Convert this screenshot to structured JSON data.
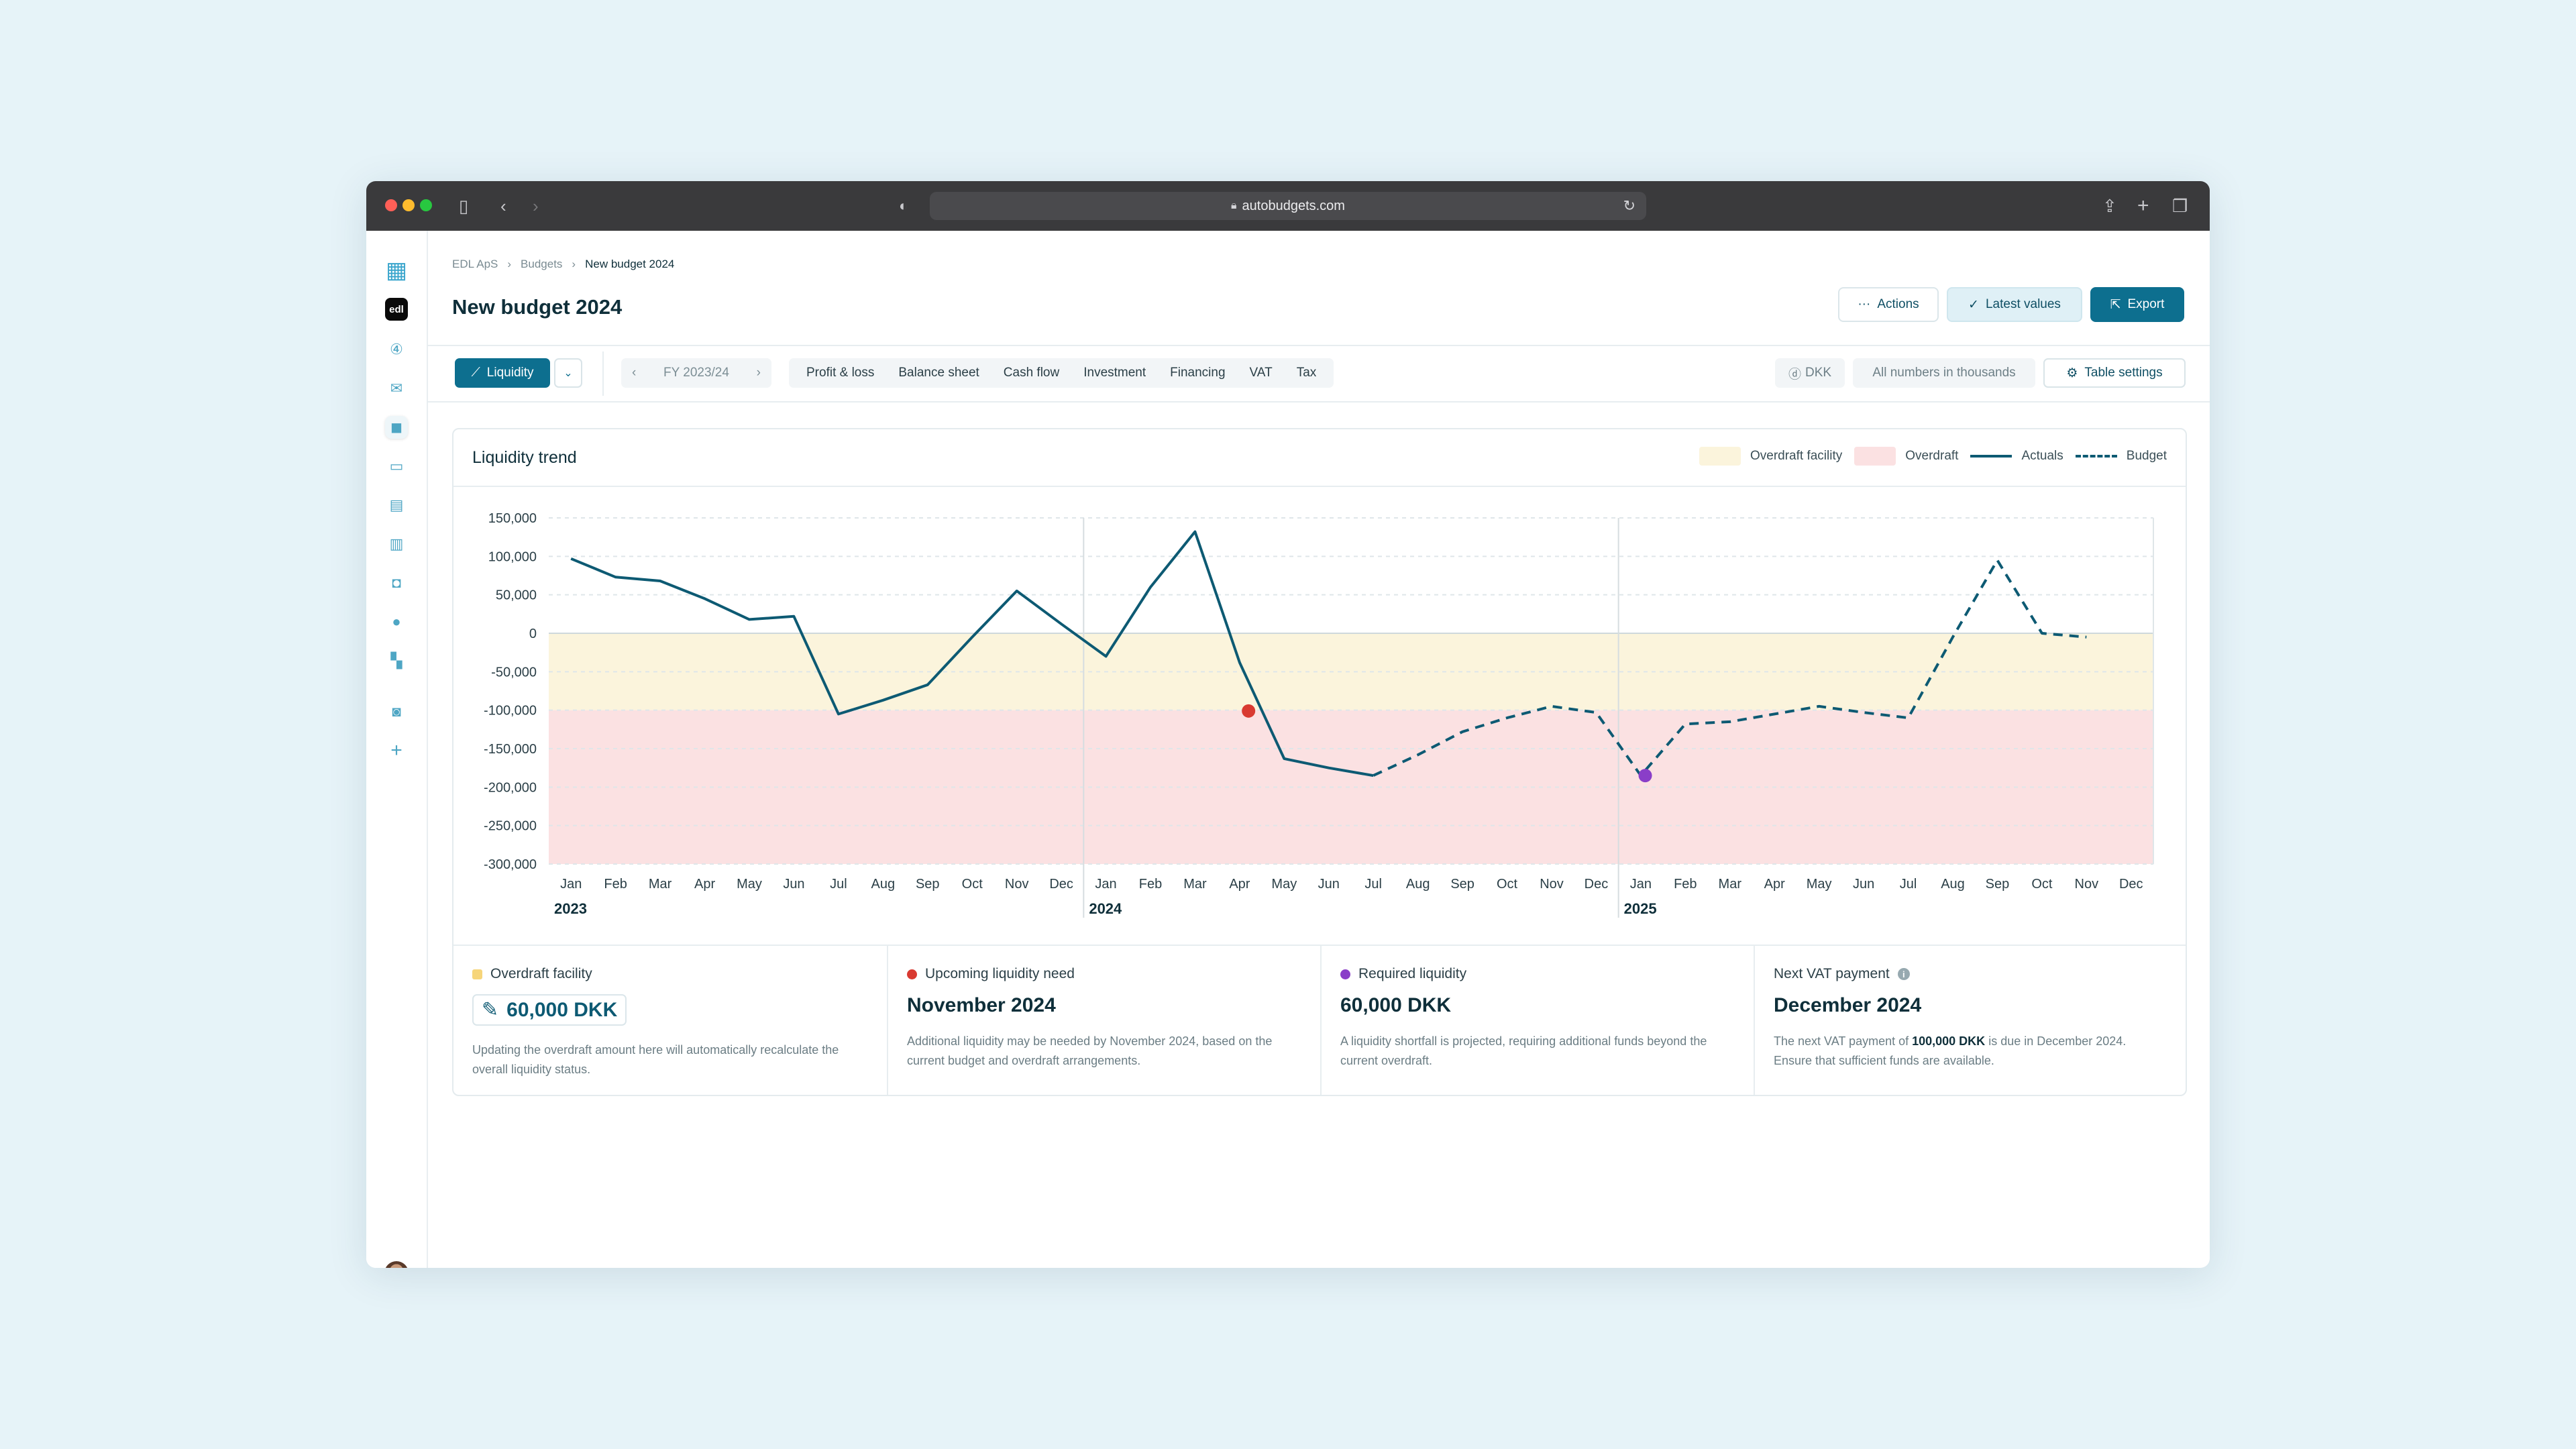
{
  "browser": {
    "url": "autobudgets.com"
  },
  "sidebar": {
    "brand_icon": "grid-logo-icon",
    "workspace_badge": "edl",
    "items": [
      "number-circle-icon",
      "mail-icon",
      "wallet-icon",
      "card-icon",
      "document-icon",
      "chart-icon",
      "database-icon",
      "people-icon",
      "apps-icon",
      "briefcase-icon",
      "plus-icon"
    ]
  },
  "breadcrumb": [
    "EDL ApS",
    "Budgets",
    "New budget 2024"
  ],
  "page_title": "New budget 2024",
  "header_buttons": {
    "actions": "Actions",
    "latest": "Latest values",
    "export": "Export"
  },
  "toolbar": {
    "view": "Liquidity",
    "fiscal_year": "FY 2023/24",
    "tabs": [
      "Profit & loss",
      "Balance sheet",
      "Cash flow",
      "Investment",
      "Financing",
      "VAT",
      "Tax"
    ],
    "currency": "DKK",
    "numbers_note": "All numbers in thousands",
    "table_settings": "Table settings"
  },
  "chart_card": {
    "title": "Liquidity trend",
    "legend": {
      "overdraft_facility": "Overdraft facility",
      "overdraft": "Overdraft",
      "actuals": "Actuals",
      "budget": "Budget"
    }
  },
  "chart_data": {
    "type": "line",
    "ylim": [
      -300000,
      150000
    ],
    "y_ticks": [
      "150,000",
      "100,000",
      "50,000",
      "0",
      "-50,000",
      "-100,000",
      "-150,000",
      "-200,000",
      "-250,000",
      "-300,000"
    ],
    "y_tick_values": [
      150000,
      100000,
      50000,
      0,
      -50000,
      -100000,
      -150000,
      -200000,
      -250000,
      -300000
    ],
    "months": [
      "Jan",
      "Feb",
      "Mar",
      "Apr",
      "May",
      "Jun",
      "Jul",
      "Aug",
      "Sep",
      "Oct",
      "Nov",
      "Dec"
    ],
    "years": [
      "2023",
      "2024",
      "2025"
    ],
    "bands": [
      {
        "name": "Overdraft facility",
        "from": 0,
        "to": -100000,
        "color": "#fbf4dc"
      },
      {
        "name": "Overdraft",
        "from": -100000,
        "to": -300000,
        "color": "#fbe1e2"
      }
    ],
    "series": [
      {
        "name": "Actuals",
        "style": "solid",
        "color": "#0d5a73",
        "points": [
          [
            0,
            97000
          ],
          [
            1,
            73000
          ],
          [
            2,
            68000
          ],
          [
            3,
            45000
          ],
          [
            4,
            18000
          ],
          [
            5,
            22000
          ],
          [
            6,
            -105000
          ],
          [
            7,
            -87000
          ],
          [
            8,
            -67000
          ],
          [
            9,
            -5000
          ],
          [
            10,
            55000
          ],
          [
            11,
            12000
          ],
          [
            12,
            -30000
          ],
          [
            13,
            60000
          ],
          [
            14,
            132000
          ],
          [
            15,
            -38000
          ],
          [
            16,
            -163000
          ],
          [
            17,
            -175000
          ],
          [
            18,
            -185000
          ]
        ]
      },
      {
        "name": "Budget",
        "style": "dashed",
        "color": "#0d5a73",
        "points": [
          [
            18,
            -185000
          ],
          [
            19,
            -158000
          ],
          [
            20,
            -128000
          ],
          [
            21,
            -110000
          ],
          [
            22,
            -95000
          ],
          [
            23,
            -103000
          ],
          [
            24,
            -185000
          ],
          [
            25,
            -118000
          ],
          [
            26,
            -115000
          ],
          [
            27,
            -105000
          ],
          [
            28,
            -95000
          ],
          [
            29,
            -103000
          ],
          [
            30,
            -110000
          ],
          [
            31,
            -5000
          ],
          [
            32,
            95000
          ],
          [
            33,
            0
          ],
          [
            34,
            -5000
          ]
        ]
      }
    ],
    "markers": [
      {
        "x": 15.2,
        "y": -101000,
        "color": "#d93a31"
      },
      {
        "x": 24.1,
        "y": -185000,
        "color": "#8a3ec8"
      }
    ]
  },
  "stats": [
    {
      "label": "Overdraft facility",
      "marker": "#f6d57a",
      "value": "60,000 DKK",
      "desc": "Updating the overdraft amount here will automatically recalculate the overall liquidity status."
    },
    {
      "label": "Upcoming liquidity need",
      "marker": "#d93a31",
      "value": "November 2024",
      "desc": "Additional liquidity may be needed by November 2024, based on the current budget and overdraft arrangements."
    },
    {
      "label": "Required liquidity",
      "marker": "#8a3ec8",
      "value": "60,000 DKK",
      "desc": "A liquidity shortfall is projected, requiring additional funds beyond the current overdraft."
    },
    {
      "label": "Next VAT payment",
      "value": "December 2024",
      "desc_pre": "The next VAT payment of ",
      "desc_bold": "100,000 DKK",
      "desc_post": " is due in December 2024. Ensure that sufficient funds are available."
    }
  ],
  "colors": {
    "accent": "#0d6f8f",
    "text": "#0f2f3a"
  }
}
